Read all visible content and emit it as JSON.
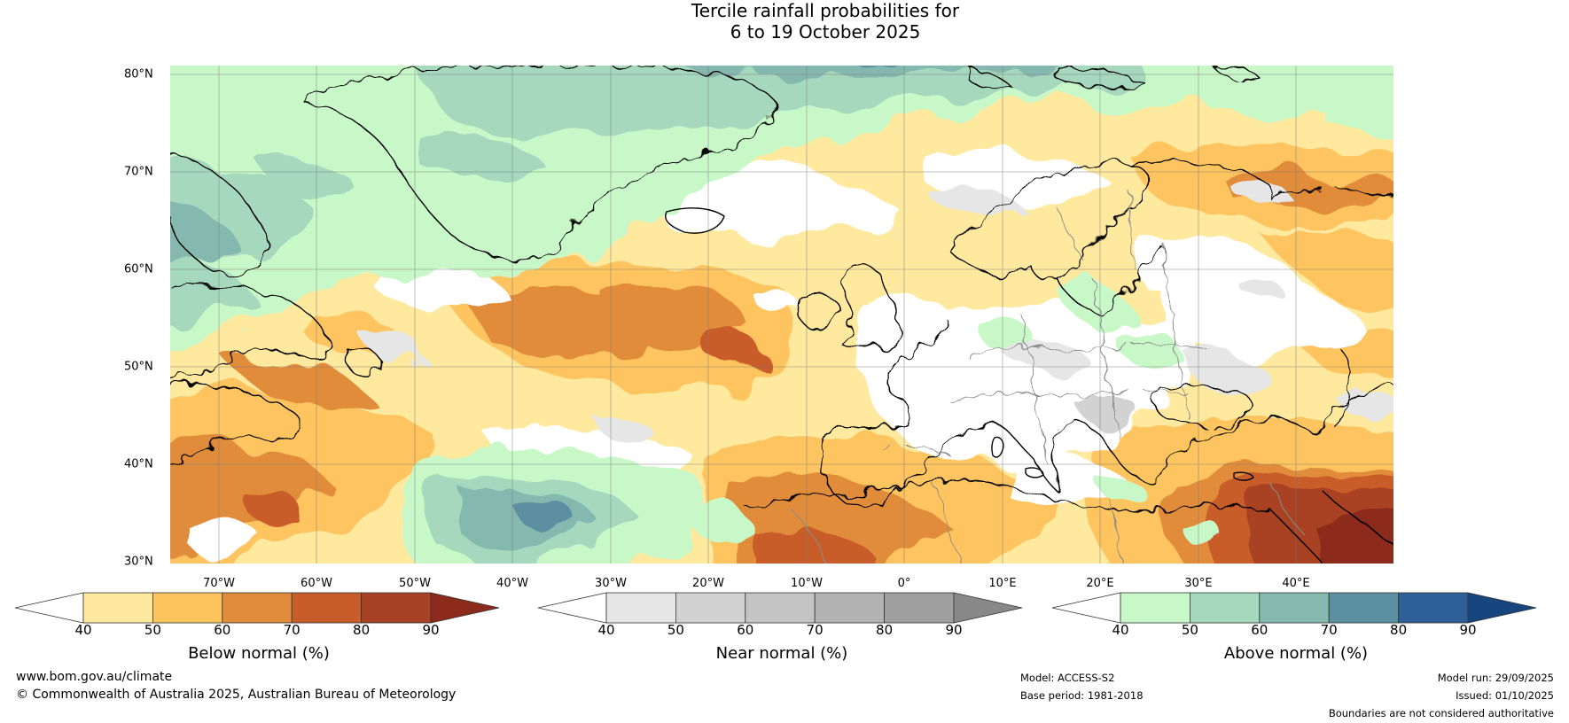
{
  "title_line1": "Tercile rainfall probabilities for",
  "title_line2": "6 to 19 October 2025",
  "lat_labels": [
    "80°N",
    "70°N",
    "60°N",
    "50°N",
    "40°N",
    "30°N"
  ],
  "lon_labels": [
    "70°W",
    "60°W",
    "50°W",
    "40°W",
    "30°W",
    "20°W",
    "10°W",
    "0°",
    "10°E",
    "20°E",
    "30°E",
    "40°E"
  ],
  "colorbars": [
    {
      "label": "Below normal (%)",
      "ticks": [
        "40",
        "50",
        "60",
        "70",
        "80",
        "90"
      ],
      "colors": [
        "#ffffff",
        "#fee99e",
        "#fdc45e",
        "#e08c3b",
        "#c85d2c",
        "#a84224",
        "#8c2a1c"
      ]
    },
    {
      "label": "Near normal (%)",
      "ticks": [
        "40",
        "50",
        "60",
        "70",
        "80",
        "90"
      ],
      "colors": [
        "#ffffff",
        "#e6e6e6",
        "#d2d2d2",
        "#c4c4c4",
        "#b3b3b3",
        "#9f9f9f",
        "#888888"
      ]
    },
    {
      "label": "Above normal (%)",
      "ticks": [
        "40",
        "50",
        "60",
        "70",
        "80",
        "90"
      ],
      "colors": [
        "#ffffff",
        "#c8f8c8",
        "#a5d8bc",
        "#85b8ae",
        "#5b8fa2",
        "#2f5f97",
        "#17457e"
      ]
    }
  ],
  "footer": {
    "website": "www.bom.gov.au/climate",
    "copyright": "© Commonwealth of Australia 2025, Australian Bureau of Meteorology",
    "model": "Model: ACCESS-S2",
    "base_period": "Base period: 1981-2018",
    "model_run": "Model run: 29/09/2025",
    "issued": "Issued: 01/10/2025",
    "disclaimer": "Boundaries are not considered authoritative"
  }
}
